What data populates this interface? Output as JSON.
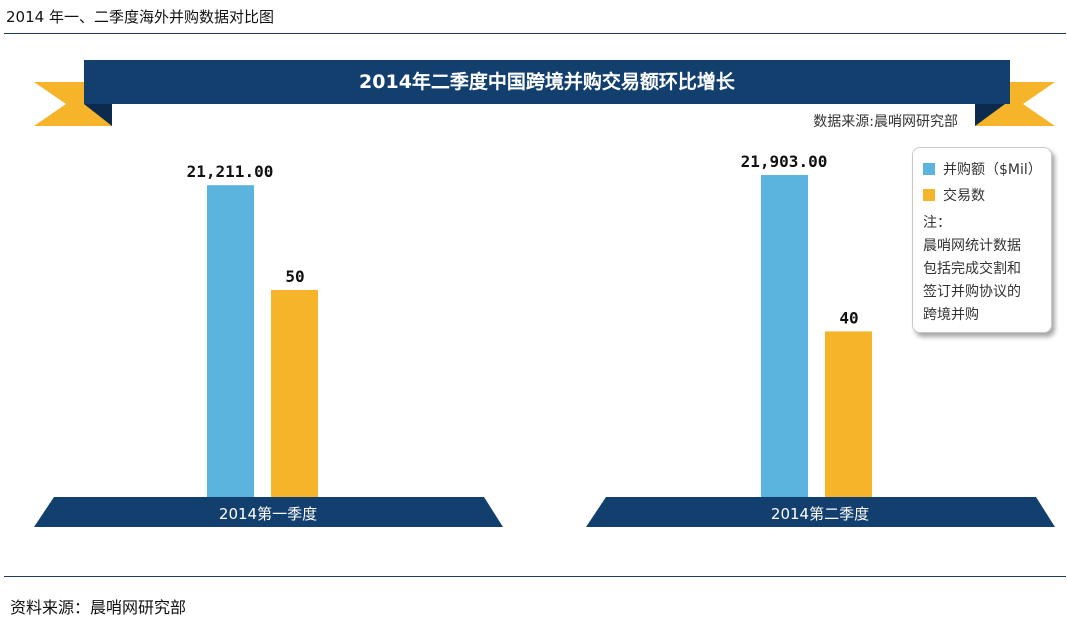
{
  "figure_caption": "2014 年一、二季度海外并购数据对比图",
  "source_note": "资料来源：晨哨网研究部",
  "colors": {
    "navy": "#123f6e",
    "gold": "#f5b42a",
    "blue": "#5ab4dd",
    "rule": "#1f3a5f"
  },
  "chart_data": {
    "type": "bar",
    "title": "2014年二季度中国跨境并购交易额环比增长",
    "subtitle": "数据来源:晨哨网研究部",
    "categories": [
      "2014第一季度",
      "2014第二季度"
    ],
    "series": [
      {
        "name": "并购额（$Mil）",
        "values": [
          21211.0,
          21903.0
        ],
        "labels": [
          "21,211.00",
          "21,903.00"
        ],
        "color": "#5ab4dd"
      },
      {
        "name": "交易数",
        "values": [
          50,
          40
        ],
        "labels": [
          "50",
          "40"
        ],
        "color": "#f5b42a"
      }
    ],
    "legend": {
      "position": "right",
      "note_title": "注：",
      "note_lines": [
        "晨哨网统计数据",
        "包括完成交割和",
        "签订并购协议的",
        "跨境并购"
      ]
    }
  }
}
